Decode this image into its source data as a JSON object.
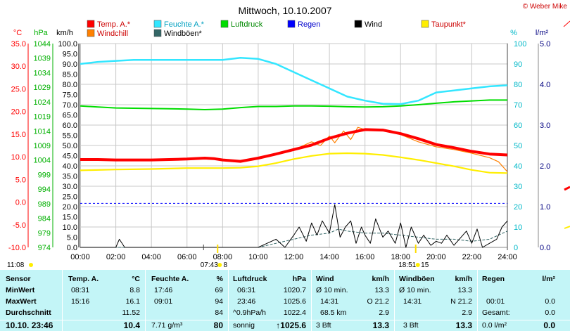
{
  "credit": "© Weber Mike",
  "chart_data": {
    "type": "line",
    "title": "Mittwoch, 10.10.2007",
    "x_ticks": [
      "00:00",
      "02:00",
      "04:00",
      "06:00",
      "08:00",
      "10:00",
      "12:00",
      "14:00",
      "16:00",
      "18:00",
      "20:00",
      "22:00",
      "24:00"
    ],
    "axes": {
      "temp": {
        "label": "°C",
        "color": "#ff0000",
        "ticks": [
          "35.0",
          "30.0",
          "25.0",
          "20.0",
          "15.0",
          "10.0",
          "5.0",
          "0.0",
          "-5.0",
          "-10.0"
        ]
      },
      "press": {
        "label": "hPa",
        "color": "#00b000",
        "ticks": [
          "1044",
          "1039",
          "1034",
          "1029",
          "1024",
          "1019",
          "1014",
          "1009",
          "1004",
          "999",
          "994",
          "989",
          "984",
          "979",
          "974"
        ]
      },
      "wind": {
        "label": "km/h",
        "color": "#000000",
        "ticks": [
          "100.0",
          "95.0",
          "90.0",
          "85.0",
          "80.0",
          "75.0",
          "70.0",
          "65.0",
          "60.0",
          "55.0",
          "50.0",
          "45.0",
          "40.0",
          "35.0",
          "30.0",
          "25.0",
          "20.0",
          "15.0",
          "10.0",
          "5.0",
          "0.0"
        ]
      },
      "hum": {
        "label": "%",
        "color": "#00b8c8",
        "ticks": [
          "100",
          "90",
          "80",
          "70",
          "60",
          "50",
          "40",
          "30",
          "20",
          "10",
          "0"
        ]
      },
      "rain": {
        "label": "l/m²",
        "color": "#000080",
        "ticks": [
          "5.0",
          "4.0",
          "3.0",
          "2.0",
          "1.0",
          "0.0"
        ]
      }
    },
    "legend": [
      {
        "name": "Temp. A.*",
        "color": "#ff0000"
      },
      {
        "name": "Feuchte A.*",
        "color": "#33e6ff"
      },
      {
        "name": "Luftdruck",
        "color": "#00dd00"
      },
      {
        "name": "Regen",
        "color": "#0000ff"
      },
      {
        "name": "Wind",
        "color": "#000000"
      },
      {
        "name": "Taupunkt*",
        "color": "#ffee00"
      },
      {
        "name": "Windchill",
        "color": "#ff8000"
      },
      {
        "name": "Windböen*",
        "color": "#336666"
      }
    ],
    "series": [
      {
        "name": "Temp. A.*",
        "axis": "temp",
        "color": "#ff0000",
        "x": [
          0,
          1,
          2,
          3,
          4,
          5,
          6,
          7,
          7.5,
          8,
          9,
          10,
          11,
          12,
          13,
          14,
          15,
          16,
          17,
          18,
          19,
          20,
          21,
          22,
          23,
          24
        ],
        "y": [
          9.4,
          9.4,
          9.3,
          9.3,
          9.3,
          9.4,
          9.5,
          9.7,
          9.6,
          9.3,
          9.0,
          9.7,
          10.6,
          11.6,
          12.6,
          14.1,
          15.2,
          16.0,
          15.9,
          15.1,
          14.0,
          12.7,
          12.0,
          11.2,
          10.6,
          10.4
        ]
      },
      {
        "name": "Windchill",
        "axis": "temp",
        "color": "#ff8000",
        "x": [
          10,
          11,
          12,
          13,
          13.5,
          14,
          14.3,
          14.8,
          15.2,
          15.6,
          16,
          17,
          18,
          19,
          20,
          21,
          22,
          23,
          23.5,
          24
        ],
        "y": [
          9.8,
          10.7,
          11.5,
          13.3,
          12.5,
          14.6,
          13.1,
          15.7,
          13.8,
          16.5,
          16.0,
          15.9,
          14.9,
          13.3,
          12.2,
          11.6,
          10.8,
          9.8,
          8.9,
          6.7
        ]
      },
      {
        "name": "Taupunkt*",
        "axis": "temp",
        "color": "#ffee00",
        "x": [
          0,
          2,
          4,
          6,
          8,
          9,
          10,
          11,
          12,
          13,
          14,
          15,
          16,
          17,
          18,
          19,
          20,
          21,
          22,
          23,
          24
        ],
        "y": [
          7.0,
          7.2,
          7.3,
          7.5,
          7.5,
          7.6,
          7.9,
          8.6,
          9.5,
          10.2,
          10.7,
          10.8,
          10.7,
          10.4,
          9.9,
          9.3,
          8.6,
          7.9,
          7.1,
          6.5,
          6.4
        ]
      },
      {
        "name": "Feuchte A.*",
        "axis": "hum",
        "color": "#33e6ff",
        "x": [
          0,
          1,
          2,
          3,
          4,
          5,
          6,
          7,
          8,
          9,
          10,
          11,
          12,
          13,
          14,
          15,
          16,
          17,
          18,
          19,
          20,
          21,
          22,
          23,
          24
        ],
        "y": [
          90,
          91,
          91.5,
          92,
          92,
          92,
          92,
          92,
          92,
          93,
          92.5,
          90,
          86,
          82,
          78,
          74,
          72,
          70.5,
          70.3,
          72,
          76,
          77,
          78,
          79,
          79.5
        ]
      },
      {
        "name": "Luftdruck",
        "axis": "press",
        "color": "#00dd00",
        "x": [
          0,
          1,
          2,
          3,
          4,
          5,
          6,
          7,
          8,
          9,
          10,
          11,
          12,
          13,
          14,
          15,
          16,
          17,
          18,
          19,
          20,
          21,
          22,
          23,
          24
        ],
        "y": [
          1022.6,
          1022.2,
          1021.9,
          1021.8,
          1021.7,
          1021.6,
          1021.5,
          1021.3,
          1021.5,
          1022.0,
          1022.4,
          1022.4,
          1022.6,
          1022.6,
          1022.5,
          1022.3,
          1022.2,
          1022.3,
          1022.6,
          1023.0,
          1023.5,
          1024.0,
          1024.3,
          1024.6,
          1024.6
        ]
      },
      {
        "name": "Regen",
        "axis": "rain",
        "color": "#0000ff",
        "x": [
          0,
          24
        ],
        "y": [
          1.08,
          1.08
        ]
      },
      {
        "name": "Wind",
        "axis": "wind",
        "color": "#000000",
        "x": [
          0,
          1,
          2,
          2.2,
          2.5,
          3,
          4,
          5,
          6,
          7,
          8,
          9,
          10,
          10.5,
          11,
          11.5,
          12,
          12.3,
          12.7,
          13,
          13.3,
          13.6,
          14,
          14.3,
          14.6,
          14.9,
          15.2,
          15.5,
          15.8,
          16,
          16.3,
          16.6,
          17,
          17.3,
          17.7,
          18,
          18.3,
          18.6,
          19,
          19.3,
          19.7,
          20,
          20.3,
          20.6,
          21,
          21.3,
          21.7,
          22,
          22.3,
          22.6,
          23,
          23.4,
          23.7,
          24
        ],
        "y": [
          0,
          0,
          0,
          4,
          0,
          0,
          0,
          0,
          0,
          0,
          0,
          0,
          0,
          2,
          4,
          0,
          6,
          10,
          3,
          12,
          6,
          13,
          7,
          21,
          5,
          10,
          13,
          2,
          10,
          6,
          2,
          14,
          5,
          8,
          2,
          12,
          0,
          10,
          2,
          6,
          1,
          3,
          2,
          6,
          1,
          4,
          8,
          2,
          9,
          0,
          2,
          4,
          10,
          13
        ]
      },
      {
        "name": "Windböen*",
        "axis": "wind",
        "color": "#336666",
        "x": [
          0,
          10,
          11,
          12,
          13,
          14,
          14.5,
          15,
          16,
          17,
          18,
          19,
          20,
          21,
          22,
          23,
          24
        ],
        "y": [
          0,
          0,
          2,
          4,
          6,
          7,
          9,
          8,
          7,
          7,
          6,
          5,
          4,
          4,
          3,
          4,
          8
        ]
      }
    ]
  },
  "markers": {
    "left_time": "11:08",
    "sunrise_time": "07:43",
    "sunrise_x": 7.72,
    "sunrise_label": "8",
    "sunset_time": "18:51",
    "sunset_x": 18.85,
    "sunset_label": "15"
  },
  "table": {
    "sensor": {
      "header": "Sensor",
      "rows": [
        "MinWert",
        "MaxWert",
        "Durchschnitt"
      ],
      "date": "10.10. 23:46"
    },
    "temp": {
      "header": "Temp. A.",
      "unit": "°C",
      "min_time": "08:31",
      "min": "8.8",
      "max_time": "15:16",
      "max": "16.1",
      "avg": "11.52",
      "current": "10.4"
    },
    "hum": {
      "header": "Feuchte A.",
      "unit": "%",
      "min_time": "17:46",
      "min": "69",
      "max_time": "09:01",
      "max": "94",
      "avg": "84",
      "abs": "7.71 g/m³",
      "current": "80"
    },
    "press": {
      "header": "Luftdruck",
      "unit": "hPa",
      "min_time": "06:31",
      "min": "1020.7",
      "max_time": "23:46",
      "max": "1025.6",
      "trend": "^0.9hPa/h",
      "avg": "1022.4",
      "forecast": "sonnig",
      "current": "↑1025.6"
    },
    "wind": {
      "header": "Wind",
      "unit": "km/h",
      "avg_label": "Ø 10 min.",
      "avg": "13.3",
      "max_time": "14:31",
      "max": "O 21.2",
      "dist": "68.5 km",
      "dist_val": "2.9",
      "bft": "3 Bft",
      "current": "13.3"
    },
    "gust": {
      "header": "Windböen",
      "unit": "km/h",
      "avg_label": "Ø 10 min.",
      "avg": "13.3",
      "max_time": "14:31",
      "max": "N 21.2",
      "val": "2.9",
      "bft": "3 Bft",
      "current": "13.3"
    },
    "rain": {
      "header": "Regen",
      "unit": "l/m²",
      "time": "00:01",
      "val1": "0.0",
      "total_label": "Gesamt:",
      "total": "0.0",
      "last": "0.0 l/m²",
      "current": "0.0"
    }
  }
}
